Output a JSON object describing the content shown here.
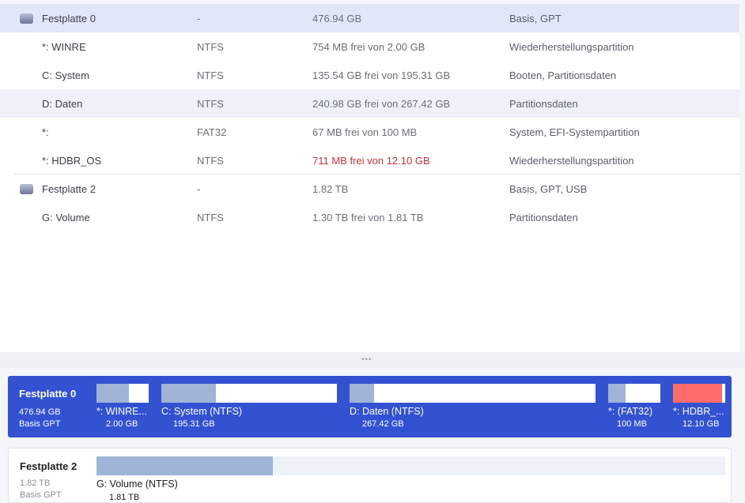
{
  "rows": [
    {
      "name": "Festplatte 0",
      "fs": "-",
      "size": "476.94 GB",
      "info": "Basis, GPT",
      "type": "disk"
    },
    {
      "name": "*: WINRE",
      "fs": "NTFS",
      "size": "754 MB frei von 2.00 GB",
      "info": "Wiederherstellungspartition"
    },
    {
      "name": "C: System",
      "fs": "NTFS",
      "size": "135.54 GB frei von 195.31 GB",
      "info": "Booten, Partitionsdaten"
    },
    {
      "name": "D: Daten",
      "fs": "NTFS",
      "size": "240.98 GB frei von 267.42 GB",
      "info": "Partitionsdaten"
    },
    {
      "name": "*:",
      "fs": "FAT32",
      "size": "67 MB frei von 100 MB",
      "info": "System, EFI-Systempartition"
    },
    {
      "name": "*: HDBR_OS",
      "fs": "NTFS",
      "size": "711 MB frei von 12.10 GB",
      "info": "Wiederherstellungspartition",
      "warning": true
    },
    {
      "name": "Festplatte 2",
      "fs": "-",
      "size": "1.82 TB",
      "info": "Basis, GPT, USB",
      "type": "disk"
    },
    {
      "name": "G: Volume",
      "fs": "NTFS",
      "size": "1.30 TB frei von 1.81 TB",
      "info": "Partitionsdaten"
    }
  ],
  "splitter": "•••",
  "map": {
    "disk0": {
      "title": "Festplatte 0",
      "size": "476.94 GB",
      "type": "Basis GPT",
      "accent": "#3352d2",
      "parts": [
        {
          "label": "*: WINRE...",
          "size": "2.00 GB",
          "used": 0.62
        },
        {
          "label": "C: System (NTFS)",
          "size": "195.31 GB",
          "used": 0.31
        },
        {
          "label": "D: Daten (NTFS)",
          "size": "267.42 GB",
          "used": 0.1
        },
        {
          "label": "*: (FAT32)",
          "size": "100 MB",
          "used": 0.33
        },
        {
          "label": "*: HDBR_...",
          "size": "12.10 GB",
          "used": 0.94,
          "color": "#ff6b6b"
        }
      ]
    },
    "disk2": {
      "title": "Festplatte 2",
      "size": "1.82 TB",
      "type": "Basis GPT",
      "parts": [
        {
          "label": "G: Volume (NTFS)",
          "size": "1.81 TB",
          "used": 0.28
        }
      ]
    }
  }
}
